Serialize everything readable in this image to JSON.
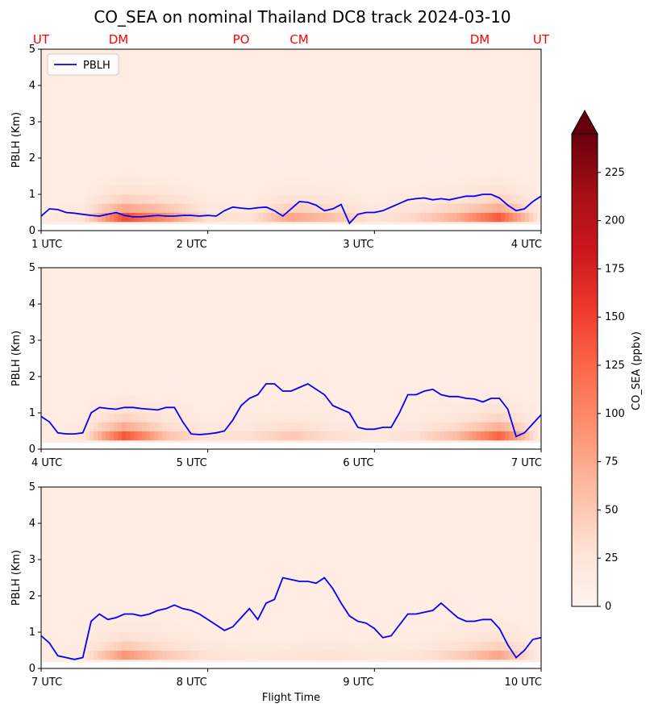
{
  "title": "CO_SEA on nominal Thailand DC8 track 2024-03-10",
  "site_labels": [
    "UT",
    "DM",
    "PO",
    "CM",
    "DM",
    "UT"
  ],
  "site_label_color": "#ff0000",
  "line_color": "#0000ff",
  "xlabel": "Flight Time",
  "colorbar": {
    "label": "CO_SEA (ppbv)",
    "ticks": [
      0,
      25,
      50,
      75,
      100,
      125,
      150,
      175,
      200,
      225
    ],
    "range": [
      0,
      245
    ],
    "extend": "max",
    "colormap": "Reds"
  },
  "chart_data": [
    {
      "type": "line",
      "panel": 1,
      "ylabel": "PBLH (Km)",
      "ylim": [
        0,
        5
      ],
      "yticks": [
        0,
        1,
        2,
        3,
        4,
        5
      ],
      "xlim": [
        1,
        4
      ],
      "xtick_labels": [
        "1 UTC",
        "2 UTC",
        "3 UTC",
        "4 UTC"
      ],
      "legend": "top-left",
      "series": [
        {
          "name": "PBLH",
          "x": [
            1.0,
            1.05,
            1.1,
            1.15,
            1.2,
            1.25,
            1.3,
            1.35,
            1.4,
            1.45,
            1.5,
            1.55,
            1.6,
            1.65,
            1.7,
            1.75,
            1.8,
            1.85,
            1.9,
            1.95,
            2.0,
            2.05,
            2.1,
            2.15,
            2.2,
            2.25,
            2.3,
            2.35,
            2.4,
            2.45,
            2.5,
            2.55,
            2.6,
            2.65,
            2.7,
            2.75,
            2.8,
            2.85,
            2.9,
            2.95,
            3.0,
            3.05,
            3.1,
            3.15,
            3.2,
            3.25,
            3.3,
            3.35,
            3.4,
            3.45,
            3.5,
            3.55,
            3.6,
            3.65,
            3.7,
            3.75,
            3.8,
            3.85,
            3.9,
            3.95,
            4.0
          ],
          "y": [
            0.4,
            0.6,
            0.58,
            0.5,
            0.48,
            0.45,
            0.42,
            0.4,
            0.45,
            0.5,
            0.42,
            0.38,
            0.38,
            0.4,
            0.42,
            0.4,
            0.4,
            0.42,
            0.42,
            0.4,
            0.42,
            0.4,
            0.55,
            0.65,
            0.62,
            0.6,
            0.63,
            0.65,
            0.55,
            0.4,
            0.6,
            0.8,
            0.78,
            0.7,
            0.55,
            0.6,
            0.72,
            0.2,
            0.45,
            0.5,
            0.5,
            0.55,
            0.65,
            0.75,
            0.85,
            0.88,
            0.9,
            0.85,
            0.88,
            0.85,
            0.9,
            0.95,
            0.95,
            1.0,
            1.0,
            0.9,
            0.7,
            0.55,
            0.6,
            0.8,
            0.95
          ]
        }
      ],
      "co_field": {
        "x": [
          1.0,
          1.25,
          1.5,
          1.75,
          2.0,
          2.25,
          2.5,
          2.75,
          3.0,
          3.25,
          3.5,
          3.75,
          4.0
        ],
        "surface_max": [
          15,
          35,
          245,
          160,
          45,
          35,
          130,
          90,
          35,
          60,
          120,
          230,
          20
        ]
      }
    },
    {
      "type": "line",
      "panel": 2,
      "ylabel": "PBLH (Km)",
      "ylim": [
        0,
        5
      ],
      "yticks": [
        0,
        1,
        2,
        3,
        4,
        5
      ],
      "xlim": [
        4,
        7
      ],
      "xtick_labels": [
        "4 UTC",
        "5 UTC",
        "6 UTC",
        "7 UTC"
      ],
      "series": [
        {
          "name": "PBLH",
          "x": [
            4.0,
            4.05,
            4.1,
            4.15,
            4.2,
            4.25,
            4.3,
            4.35,
            4.4,
            4.45,
            4.5,
            4.55,
            4.6,
            4.65,
            4.7,
            4.75,
            4.8,
            4.85,
            4.9,
            4.95,
            5.0,
            5.05,
            5.1,
            5.15,
            5.2,
            5.25,
            5.3,
            5.35,
            5.4,
            5.45,
            5.5,
            5.55,
            5.6,
            5.65,
            5.7,
            5.75,
            5.8,
            5.85,
            5.9,
            5.95,
            6.0,
            6.05,
            6.1,
            6.15,
            6.2,
            6.25,
            6.3,
            6.35,
            6.4,
            6.45,
            6.5,
            6.55,
            6.6,
            6.65,
            6.7,
            6.75,
            6.8,
            6.85,
            6.9,
            6.95,
            7.0
          ],
          "y": [
            0.9,
            0.75,
            0.45,
            0.42,
            0.42,
            0.45,
            1.0,
            1.15,
            1.12,
            1.1,
            1.15,
            1.15,
            1.12,
            1.1,
            1.08,
            1.15,
            1.15,
            0.75,
            0.42,
            0.4,
            0.42,
            0.45,
            0.5,
            0.8,
            1.2,
            1.4,
            1.5,
            1.8,
            1.8,
            1.6,
            1.6,
            1.7,
            1.8,
            1.65,
            1.5,
            1.2,
            1.1,
            1.0,
            0.6,
            0.55,
            0.55,
            0.6,
            0.6,
            1.0,
            1.5,
            1.5,
            1.6,
            1.65,
            1.5,
            1.45,
            1.45,
            1.4,
            1.38,
            1.3,
            1.4,
            1.4,
            1.1,
            0.35,
            0.45,
            0.7,
            0.95
          ]
        }
      ],
      "co_field": {
        "x": [
          4.0,
          4.25,
          4.5,
          4.75,
          5.0,
          5.25,
          5.5,
          5.75,
          6.0,
          6.25,
          6.5,
          6.75,
          7.0
        ],
        "surface_max": [
          10,
          30,
          235,
          90,
          40,
          45,
          80,
          45,
          25,
          45,
          100,
          220,
          15
        ]
      }
    },
    {
      "type": "line",
      "panel": 3,
      "ylabel": "PBLH (Km)",
      "ylim": [
        0,
        5
      ],
      "yticks": [
        0,
        1,
        2,
        3,
        4,
        5
      ],
      "xlim": [
        7,
        10
      ],
      "xtick_labels": [
        "7 UTC",
        "8 UTC",
        "9 UTC",
        "10 UTC"
      ],
      "xlabel": "Flight Time",
      "series": [
        {
          "name": "PBLH",
          "x": [
            7.0,
            7.05,
            7.1,
            7.15,
            7.2,
            7.25,
            7.3,
            7.35,
            7.4,
            7.45,
            7.5,
            7.55,
            7.6,
            7.65,
            7.7,
            7.75,
            7.8,
            7.85,
            7.9,
            7.95,
            8.0,
            8.05,
            8.1,
            8.15,
            8.2,
            8.25,
            8.3,
            8.35,
            8.4,
            8.45,
            8.5,
            8.55,
            8.6,
            8.65,
            8.7,
            8.75,
            8.8,
            8.85,
            8.9,
            8.95,
            9.0,
            9.05,
            9.1,
            9.15,
            9.2,
            9.25,
            9.3,
            9.35,
            9.4,
            9.45,
            9.5,
            9.55,
            9.6,
            9.65,
            9.7,
            9.75,
            9.8,
            9.85,
            9.9,
            9.95,
            10.0
          ],
          "y": [
            0.9,
            0.7,
            0.35,
            0.3,
            0.25,
            0.3,
            1.3,
            1.5,
            1.35,
            1.4,
            1.5,
            1.5,
            1.45,
            1.5,
            1.6,
            1.65,
            1.75,
            1.65,
            1.6,
            1.5,
            1.35,
            1.2,
            1.05,
            1.15,
            1.4,
            1.65,
            1.35,
            1.8,
            1.9,
            2.5,
            2.45,
            2.4,
            2.4,
            2.35,
            2.5,
            2.2,
            1.8,
            1.45,
            1.3,
            1.25,
            1.1,
            0.85,
            0.9,
            1.2,
            1.5,
            1.5,
            1.55,
            1.6,
            1.8,
            1.6,
            1.4,
            1.3,
            1.3,
            1.35,
            1.35,
            1.1,
            0.65,
            0.3,
            0.5,
            0.8,
            0.85
          ]
        }
      ],
      "co_field": {
        "x": [
          7.0,
          7.25,
          7.5,
          7.75,
          8.0,
          8.25,
          8.5,
          8.75,
          9.0,
          9.25,
          9.5,
          9.75,
          10.0
        ],
        "surface_max": [
          12,
          25,
          150,
          80,
          40,
          30,
          35,
          40,
          30,
          35,
          70,
          130,
          10
        ]
      }
    }
  ]
}
